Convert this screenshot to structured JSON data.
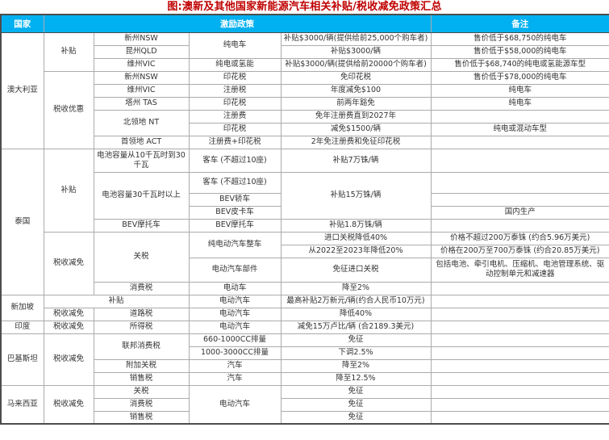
{
  "title": "图:澳新及其他国家新能源汽车相关补贴/税收减免政策汇总",
  "header": {
    "country": "国家",
    "policy": "激励政策",
    "remark": "备注"
  },
  "colors": {
    "header_bg": "#00B0F0",
    "header_text": "#FFFFFF",
    "title_text": "#C00000",
    "body_text": "#333333",
    "grid_line": "#ABABAB",
    "section_line": "#4D4D4D"
  },
  "sections": [
    {
      "country": "澳大利亚",
      "rows": [
        [
          {
            "t": "澳大利亚",
            "rs": 9
          },
          {
            "t": "补贴",
            "rs": 3
          },
          {
            "t": "新州NSW"
          },
          {
            "t": "纯电车",
            "rs": 2
          },
          {
            "t": "补贴$3000/辆(提供给前25,000个购车者)"
          },
          {
            "t": "售价低于$68,750的纯电车"
          }
        ],
        [
          {
            "t": "昆州QLD"
          },
          {
            "t": "补贴$3000/辆"
          },
          {
            "t": "售价低于$58,000的纯电车"
          }
        ],
        [
          {
            "t": "维州VIC"
          },
          {
            "t": "纯电或氢能"
          },
          {
            "t": "补贴$3000/辆(提供给前20000个购车者)"
          },
          {
            "t": "售价低于$68,740的纯电或氢能源车型"
          }
        ],
        [
          {
            "t": "税收优惠",
            "rs": 6
          },
          {
            "t": "新州NSW"
          },
          {
            "t": "印花税"
          },
          {
            "t": "免印花税"
          },
          {
            "t": "售价低于$78,000的纯电车"
          }
        ],
        [
          {
            "t": "维州VIC"
          },
          {
            "t": "注册税"
          },
          {
            "t": "年度减免$100"
          },
          {
            "t": "纯电车"
          }
        ],
        [
          {
            "t": "塔州 TAS"
          },
          {
            "t": "印花税"
          },
          {
            "t": "前两年豁免"
          },
          {
            "t": "纯电车"
          }
        ],
        [
          {
            "t": "北领地 NT",
            "rs": 2
          },
          {
            "t": "注册费"
          },
          {
            "t": "免年注册费直到2027年"
          },
          {
            "t": ""
          }
        ],
        [
          {
            "t": "印花税"
          },
          {
            "t": "减免$1500/辆"
          },
          {
            "t": "纯电或混动车型"
          }
        ],
        [
          {
            "t": "首领地 ACT"
          },
          {
            "t": "注册费+印花税"
          },
          {
            "t": "2年免注册费和免征印花税"
          },
          {
            "t": ""
          }
        ]
      ]
    },
    {
      "country": "泰国",
      "rows": [
        [
          {
            "t": "泰国",
            "rs": 9
          },
          {
            "t": "补贴",
            "rs": 5
          },
          {
            "t": "电池容量从10千瓦时到30千瓦"
          },
          {
            "t": "客车 (不超过10座)"
          },
          {
            "t": "补贴7万铢/辆"
          },
          {
            "t": ""
          }
        ],
        [
          {
            "t": "电池容量30千瓦时以上",
            "rs": 3
          },
          {
            "t": "客车 (不超过10座)"
          },
          {
            "t": "补贴15万铢/辆",
            "rs": 3
          },
          {
            "t": ""
          }
        ],
        [
          {
            "t": "BEV轿车"
          },
          {
            "t": ""
          }
        ],
        [
          {
            "t": "BEV皮卡车"
          },
          {
            "t": "国内生产"
          }
        ],
        [
          {
            "t": "BEV摩托车"
          },
          {
            "t": "BEV摩托车"
          },
          {
            "t": "补贴1.8万铢/辆"
          },
          {
            "t": ""
          }
        ],
        [
          {
            "t": "税收减免",
            "rs": 4
          },
          {
            "t": "关税",
            "rs": 3
          },
          {
            "t": "纯电动汽车整车",
            "rs": 2
          },
          {
            "t": "进口关税降低40%"
          },
          {
            "t": "价格不超过200万泰铢 (约合5.96万美元)"
          }
        ],
        [
          {
            "t": "从2022至2023年降低20%"
          },
          {
            "t": "价格在200万至700万泰铢 (约合20.85万美元)"
          }
        ],
        [
          {
            "t": "电动汽车部件"
          },
          {
            "t": "免征进口关税"
          },
          {
            "t": "包括电池、牵引电机、压缩机、电池管理系统、驱动控制单元和减速器"
          }
        ],
        [
          {
            "t": "消费税"
          },
          {
            "t": "电动车"
          },
          {
            "t": "降至2%"
          },
          {
            "t": ""
          }
        ]
      ]
    },
    {
      "country": "新加坡",
      "rows": [
        [
          {
            "t": "新加坡",
            "rs": 2
          },
          {
            "t": "补贴",
            "cs": 2
          },
          {
            "t": "电动汽车"
          },
          {
            "t": "最高补贴2万新元/辆(约合人民币10万元)"
          },
          {
            "t": ""
          }
        ],
        [
          {
            "t": "税收减免"
          },
          {
            "t": "道路税"
          },
          {
            "t": "电动汽车"
          },
          {
            "t": "降低40%"
          },
          {
            "t": ""
          }
        ]
      ]
    },
    {
      "country": "印度",
      "rows": [
        [
          {
            "t": "印度"
          },
          {
            "t": "税收减免"
          },
          {
            "t": "所得税"
          },
          {
            "t": "电动汽车"
          },
          {
            "t": "减免15万卢比/辆 (合2189.3美元)"
          },
          {
            "t": ""
          }
        ]
      ]
    },
    {
      "country": "巴基斯坦",
      "rows": [
        [
          {
            "t": "巴基斯坦",
            "rs": 4
          },
          {
            "t": "税收减免",
            "rs": 4
          },
          {
            "t": "联邦消费税",
            "rs": 2
          },
          {
            "t": "660-1000CC排量"
          },
          {
            "t": "免征"
          },
          {
            "t": ""
          }
        ],
        [
          {
            "t": "1000-3000CC排量"
          },
          {
            "t": "下调2.5%"
          },
          {
            "t": ""
          }
        ],
        [
          {
            "t": "附加关税"
          },
          {
            "t": "汽车"
          },
          {
            "t": "降至2%"
          },
          {
            "t": ""
          }
        ],
        [
          {
            "t": "销售税"
          },
          {
            "t": "汽车"
          },
          {
            "t": "降至12.5%"
          },
          {
            "t": ""
          }
        ]
      ]
    },
    {
      "country": "马来西亚",
      "rows": [
        [
          {
            "t": "马来西亚",
            "rs": 3
          },
          {
            "t": "税收减免",
            "rs": 3
          },
          {
            "t": "关税"
          },
          {
            "t": "电动汽车",
            "rs": 3
          },
          {
            "t": "免征"
          },
          {
            "t": ""
          }
        ],
        [
          {
            "t": "消费税"
          },
          {
            "t": "免征"
          },
          {
            "t": ""
          }
        ],
        [
          {
            "t": "销售税"
          },
          {
            "t": "免征"
          },
          {
            "t": ""
          }
        ]
      ]
    }
  ]
}
